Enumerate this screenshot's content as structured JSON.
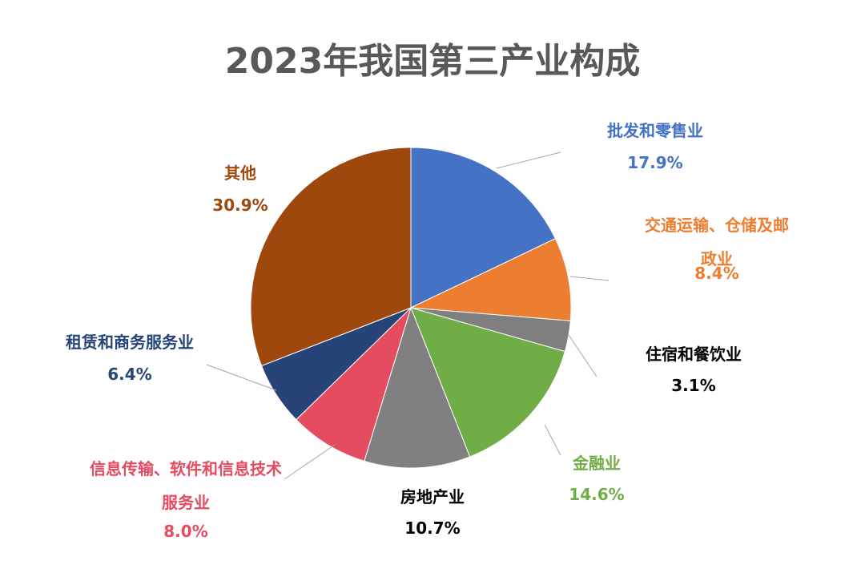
{
  "chart_data": {
    "type": "pie",
    "title": "2023年我国第三产业构成",
    "categories": [
      "批发和零售业",
      "交通运输、仓储及邮政业",
      "住宿和餐饮业",
      "金融业",
      "房地产业",
      "信息传输、软件和信息技术服务业",
      "租赁和商务服务业",
      "其他"
    ],
    "values": [
      17.9,
      8.4,
      3.1,
      14.6,
      10.7,
      8.0,
      6.4,
      30.9
    ],
    "value_labels": [
      "17.9%",
      "8.4%",
      "3.1%",
      "14.6%",
      "10.7%",
      "8.0%",
      "6.4%",
      "30.9%"
    ],
    "colors": [
      "#4472c4",
      "#ed7d31",
      "#7f7f7f",
      "#70ad47",
      "#808080",
      "#e64c5f",
      "#264478",
      "#9e480e"
    ],
    "label_colors": [
      "#4472c4",
      "#ed7d31",
      "#000000",
      "#70ad47",
      "#000000",
      "#e64c5f",
      "#264478",
      "#9e480e"
    ]
  }
}
